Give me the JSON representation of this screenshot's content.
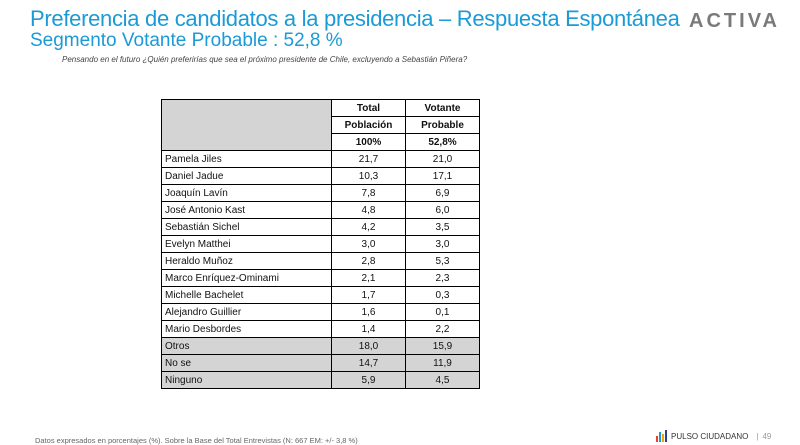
{
  "title": "Preferencia de candidatos a la presidencia – Respuesta Espontánea",
  "subtitle": "Segmento Votante Probable : 52,8 %",
  "question": "Pensando en el futuro ¿Quién preferirías que sea el próximo presidente de Chile, excluyendo a Sebastián Piñera?",
  "logo": "ACTIVA",
  "table": {
    "col1": [
      "Total",
      "Población",
      "100%"
    ],
    "col2": [
      "Votante",
      "Probable",
      "52,8%"
    ],
    "rows": [
      {
        "name": "Pamela Jiles",
        "a": "21,7",
        "b": "21,0"
      },
      {
        "name": "Daniel Jadue",
        "a": "10,3",
        "b": "17,1"
      },
      {
        "name": "Joaquín Lavín",
        "a": "7,8",
        "b": "6,9"
      },
      {
        "name": "José Antonio Kast",
        "a": "4,8",
        "b": "6,0"
      },
      {
        "name": "Sebastián Sichel",
        "a": "4,2",
        "b": "3,5"
      },
      {
        "name": "Evelyn Matthei",
        "a": "3,0",
        "b": "3,0"
      },
      {
        "name": "Heraldo Muñoz",
        "a": "2,8",
        "b": "5,3"
      },
      {
        "name": "Marco Enríquez-Ominami",
        "a": "2,1",
        "b": "2,3"
      },
      {
        "name": " Michelle Bachelet",
        "a": "1,7",
        "b": "0,3"
      },
      {
        "name": "Alejandro Guillier",
        "a": "1,6",
        "b": "0,1"
      },
      {
        "name": "Mario Desbordes",
        "a": "1,4",
        "b": "2,2"
      },
      {
        "name": "Otros",
        "a": "18,0",
        "b": "15,9"
      },
      {
        "name": "No se",
        "a": "14,7",
        "b": "11,9"
      },
      {
        "name": "Ninguno",
        "a": "5,9",
        "b": "4,5"
      }
    ]
  },
  "footer": "Datos expresados en porcentajes (%). Sobre la Base del Total Entrevistas (N: 667  EM: +/-  3,8 %)",
  "brand": "PULSO CIUDADANO",
  "page_number": "49",
  "colors": {
    "accent": "#1a9ad6",
    "shade": "#d4d4d4"
  }
}
